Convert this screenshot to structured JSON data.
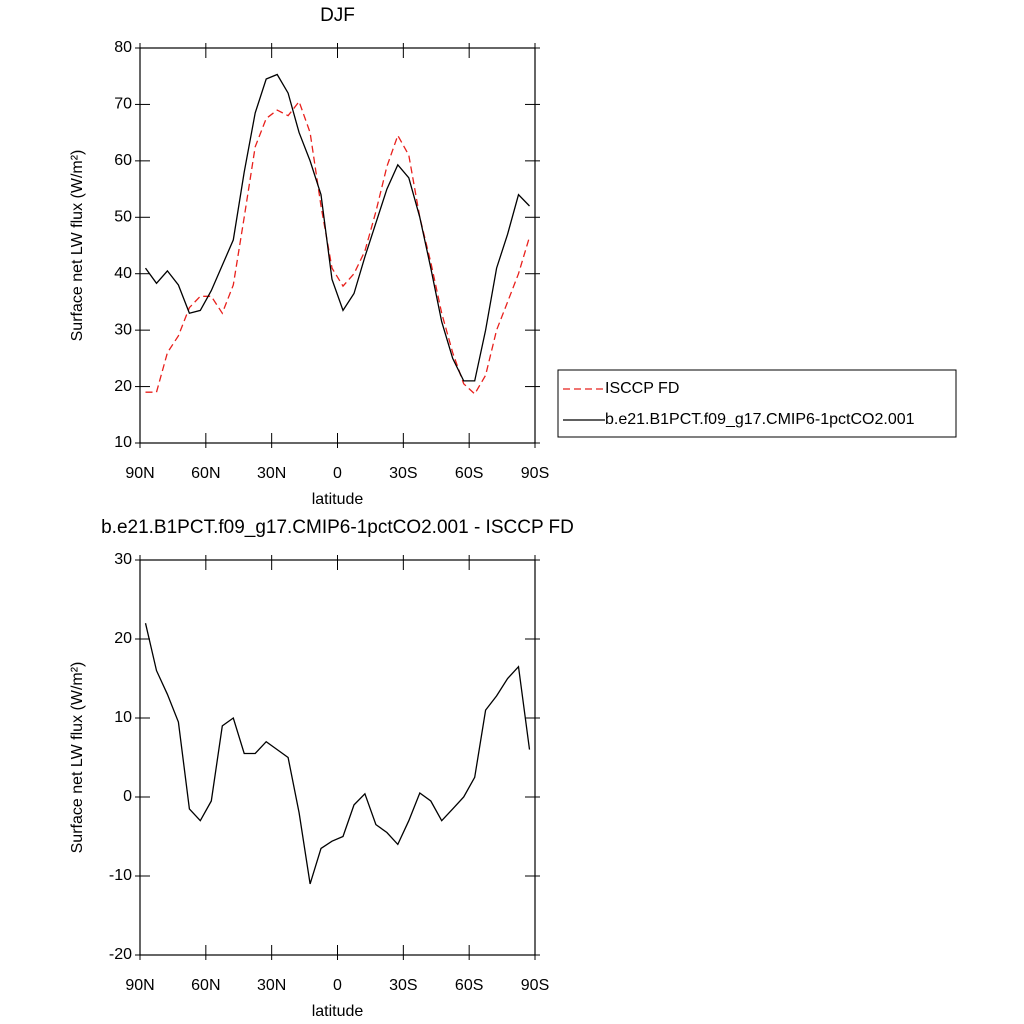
{
  "chart_data": [
    {
      "type": "line",
      "title": "DJF",
      "xlabel": "latitude",
      "ylabel": "Surface net LW flux (W/m²)",
      "x": [
        87.5,
        82.5,
        77.5,
        72.5,
        67.5,
        62.5,
        57.5,
        52.5,
        47.5,
        42.5,
        37.5,
        32.5,
        27.5,
        22.5,
        17.5,
        12.5,
        7.5,
        2.5,
        -2.5,
        -7.5,
        -12.5,
        -17.5,
        -22.5,
        -27.5,
        -32.5,
        -37.5,
        -42.5,
        -47.5,
        -52.5,
        -57.5,
        -62.5,
        -67.5,
        -72.5,
        -77.5,
        -82.5,
        -87.5
      ],
      "series": [
        {
          "name": "ISCCP FD",
          "color": "#e8201c",
          "linestyle": "dashed",
          "values": [
            19,
            19,
            26,
            29,
            34,
            36,
            36,
            33,
            38,
            50,
            62.5,
            67.5,
            69,
            68,
            70.5,
            65,
            52,
            41,
            37.8,
            40,
            44,
            51,
            59,
            64.5,
            61,
            50,
            42,
            33,
            26,
            20.5,
            18.7,
            22,
            30,
            35,
            40,
            46.5
          ]
        },
        {
          "name": "b.e21.B1PCT.f09_g17.CMIP6-1pctCO2.001",
          "color": "#000000",
          "linestyle": "solid",
          "values": [
            41,
            38.3,
            40.5,
            38,
            33,
            33.5,
            37,
            41.5,
            46,
            58,
            68.5,
            74.5,
            75.3,
            72,
            65,
            60,
            54,
            39,
            33.5,
            36.5,
            43,
            49,
            55,
            59.3,
            57,
            50,
            41,
            31.5,
            25,
            21,
            21,
            30,
            41,
            47,
            54,
            52
          ]
        }
      ],
      "xlim": [
        90,
        -90
      ],
      "xticks": [
        {
          "value": 90,
          "label": "90N"
        },
        {
          "value": 60,
          "label": "60N"
        },
        {
          "value": 30,
          "label": "30N"
        },
        0,
        {
          "value": -30,
          "label": "30S"
        },
        {
          "value": -60,
          "label": "60S"
        },
        {
          "value": -90,
          "label": "90S"
        }
      ],
      "ylim": [
        10,
        80
      ],
      "yticks": [
        10,
        20,
        30,
        40,
        50,
        60,
        70,
        80
      ],
      "legend": "right"
    },
    {
      "type": "line",
      "title": "b.e21.B1PCT.f09_g17.CMIP6-1pctCO2.001 - ISCCP FD",
      "xlabel": "latitude",
      "ylabel": "Surface net LW flux (W/m²)",
      "x": [
        87.5,
        82.5,
        77.5,
        72.5,
        67.5,
        62.5,
        57.5,
        52.5,
        47.5,
        42.5,
        37.5,
        32.5,
        27.5,
        22.5,
        17.5,
        12.5,
        7.5,
        2.5,
        -2.5,
        -7.5,
        -12.5,
        -17.5,
        -22.5,
        -27.5,
        -32.5,
        -37.5,
        -42.5,
        -47.5,
        -52.5,
        -57.5,
        -62.5,
        -67.5,
        -72.5,
        -77.5,
        -82.5,
        -87.5
      ],
      "series": [
        {
          "color": "#000000",
          "linestyle": "solid",
          "values": [
            22,
            16,
            13,
            9.5,
            -1.5,
            -3,
            -0.5,
            9,
            10,
            5.5,
            5.5,
            7,
            6,
            5,
            -2,
            -11,
            -6.5,
            -5.6,
            -5,
            -1,
            0.4,
            -3.5,
            -4.5,
            -6,
            -3,
            0.5,
            -0.5,
            -3,
            -1.5,
            0,
            2.5,
            11,
            12.8,
            15,
            16.5,
            6
          ]
        }
      ],
      "xlim": [
        90,
        -90
      ],
      "xticks": [
        {
          "value": 90,
          "label": "90N"
        },
        {
          "value": 60,
          "label": "60N"
        },
        {
          "value": 30,
          "label": "30N"
        },
        0,
        {
          "value": -30,
          "label": "30S"
        },
        {
          "value": -60,
          "label": "60S"
        },
        {
          "value": -90,
          "label": "90S"
        }
      ],
      "ylim": [
        -20,
        30
      ],
      "yticks": [
        -20,
        -10,
        0,
        10,
        20,
        30
      ]
    }
  ]
}
